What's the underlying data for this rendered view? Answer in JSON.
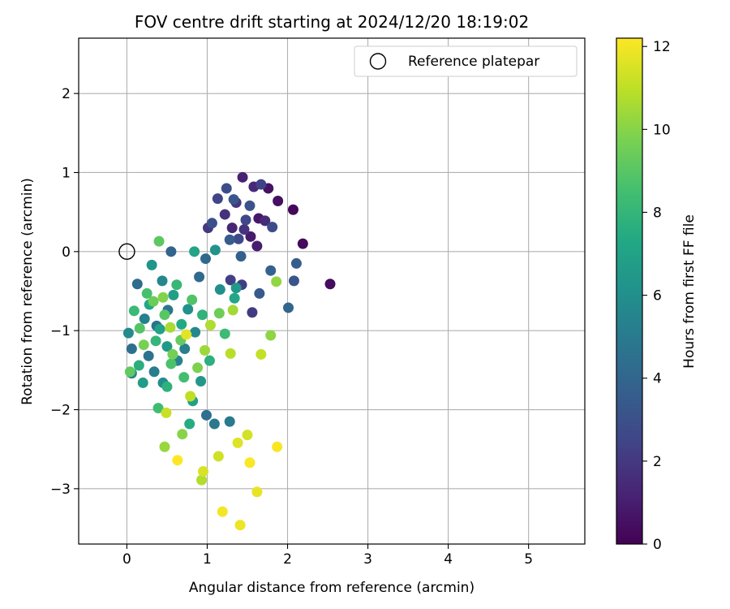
{
  "chart_data": {
    "type": "scatter",
    "title": "FOV centre drift starting at 2024/12/20 18:19:02",
    "xlabel": "Angular distance from reference (arcmin)",
    "ylabel": "Rotation from reference (arcmin)",
    "xlim": [
      -0.6,
      5.7
    ],
    "ylim": [
      -3.7,
      2.7
    ],
    "xticks": [
      0,
      1,
      2,
      3,
      4,
      5
    ],
    "yticks": [
      -3,
      -2,
      -1,
      0,
      1,
      2
    ],
    "grid": true,
    "legend": {
      "position": "top-right",
      "entries": [
        "Reference platepar"
      ]
    },
    "reference_point": {
      "x": 0,
      "y": 0
    },
    "colorbar": {
      "label": "Hours from first FF file",
      "colormap": "viridis",
      "range": [
        0,
        12.2
      ],
      "ticks": [
        0,
        2,
        4,
        6,
        8,
        10,
        12
      ]
    },
    "points": [
      {
        "x": 2.07,
        "y": 0.53,
        "c": 0.2
      },
      {
        "x": 2.19,
        "y": 0.1,
        "c": 0.3
      },
      {
        "x": 2.53,
        "y": -0.41,
        "c": 0.4
      },
      {
        "x": 1.88,
        "y": 0.64,
        "c": 0.5
      },
      {
        "x": 1.76,
        "y": 0.8,
        "c": 0.6
      },
      {
        "x": 1.64,
        "y": 0.42,
        "c": 0.8
      },
      {
        "x": 1.54,
        "y": 0.19,
        "c": 0.9
      },
      {
        "x": 1.62,
        "y": 0.07,
        "c": 1.0
      },
      {
        "x": 1.44,
        "y": 0.94,
        "c": 1.1
      },
      {
        "x": 1.31,
        "y": 0.3,
        "c": 1.3
      },
      {
        "x": 1.58,
        "y": 0.82,
        "c": 1.4
      },
      {
        "x": 1.72,
        "y": 0.39,
        "c": 1.5
      },
      {
        "x": 1.22,
        "y": 0.47,
        "c": 1.7
      },
      {
        "x": 1.46,
        "y": 0.28,
        "c": 1.8
      },
      {
        "x": 1.36,
        "y": 0.62,
        "c": 1.9
      },
      {
        "x": 1.01,
        "y": 0.3,
        "c": 2.0
      },
      {
        "x": 1.56,
        "y": -0.77,
        "c": 2.1
      },
      {
        "x": 1.43,
        "y": -0.42,
        "c": 2.2
      },
      {
        "x": 1.29,
        "y": -0.36,
        "c": 2.3
      },
      {
        "x": 1.67,
        "y": 0.85,
        "c": 2.4
      },
      {
        "x": 1.13,
        "y": 0.67,
        "c": 2.5
      },
      {
        "x": 1.48,
        "y": 0.4,
        "c": 2.6
      },
      {
        "x": 1.39,
        "y": 0.16,
        "c": 2.7
      },
      {
        "x": 1.81,
        "y": 0.31,
        "c": 2.8
      },
      {
        "x": 1.24,
        "y": 0.8,
        "c": 2.9
      },
      {
        "x": 1.06,
        "y": 0.36,
        "c": 3.0
      },
      {
        "x": 1.53,
        "y": 0.58,
        "c": 3.1
      },
      {
        "x": 2.08,
        "y": -0.37,
        "c": 3.2
      },
      {
        "x": 1.33,
        "y": 0.66,
        "c": 3.3
      },
      {
        "x": 1.65,
        "y": -0.53,
        "c": 3.4
      },
      {
        "x": 1.28,
        "y": 0.15,
        "c": 3.5
      },
      {
        "x": 2.11,
        "y": -0.15,
        "c": 3.6
      },
      {
        "x": 1.42,
        "y": -0.06,
        "c": 3.7
      },
      {
        "x": 1.79,
        "y": -0.24,
        "c": 3.8
      },
      {
        "x": 0.55,
        "y": 0.0,
        "c": 3.9
      },
      {
        "x": 2.01,
        "y": -0.71,
        "c": 4.0
      },
      {
        "x": 0.98,
        "y": -0.09,
        "c": 4.1
      },
      {
        "x": 0.9,
        "y": -0.32,
        "c": 4.2
      },
      {
        "x": 0.13,
        "y": -0.41,
        "c": 4.3
      },
      {
        "x": 0.99,
        "y": -2.07,
        "c": 4.4
      },
      {
        "x": 0.06,
        "y": -1.23,
        "c": 4.5
      },
      {
        "x": 0.37,
        "y": -0.94,
        "c": 4.6
      },
      {
        "x": 0.27,
        "y": -1.32,
        "c": 4.7
      },
      {
        "x": 0.51,
        "y": -0.74,
        "c": 4.8
      },
      {
        "x": 1.09,
        "y": -2.18,
        "c": 4.9
      },
      {
        "x": 1.28,
        "y": -2.15,
        "c": 5.0
      },
      {
        "x": 0.34,
        "y": -1.52,
        "c": 5.1
      },
      {
        "x": 0.72,
        "y": -1.23,
        "c": 5.2
      },
      {
        "x": 0.22,
        "y": -0.85,
        "c": 5.3
      },
      {
        "x": 0.63,
        "y": -1.38,
        "c": 5.4
      },
      {
        "x": 0.06,
        "y": -1.54,
        "c": 5.5
      },
      {
        "x": 0.44,
        "y": -0.37,
        "c": 5.6
      },
      {
        "x": 0.85,
        "y": -1.02,
        "c": 5.7
      },
      {
        "x": 0.02,
        "y": -1.03,
        "c": 5.8
      },
      {
        "x": 0.45,
        "y": -1.66,
        "c": 5.9
      },
      {
        "x": 1.16,
        "y": -0.48,
        "c": 6.0
      },
      {
        "x": 0.76,
        "y": -0.73,
        "c": 6.1
      },
      {
        "x": 1.1,
        "y": 0.02,
        "c": 6.2
      },
      {
        "x": 0.31,
        "y": -0.17,
        "c": 6.3
      },
      {
        "x": 0.92,
        "y": -1.64,
        "c": 6.4
      },
      {
        "x": 0.5,
        "y": -1.2,
        "c": 6.5
      },
      {
        "x": 1.36,
        "y": -0.46,
        "c": 6.6
      },
      {
        "x": 0.2,
        "y": -1.66,
        "c": 6.7
      },
      {
        "x": 0.58,
        "y": -0.55,
        "c": 6.8
      },
      {
        "x": 0.82,
        "y": -1.89,
        "c": 6.9
      },
      {
        "x": 0.41,
        "y": -0.98,
        "c": 7.0
      },
      {
        "x": 0.84,
        "y": 0.0,
        "c": 7.1
      },
      {
        "x": 1.34,
        "y": -0.59,
        "c": 7.2
      },
      {
        "x": 0.28,
        "y": -0.67,
        "c": 7.3
      },
      {
        "x": 0.68,
        "y": -0.92,
        "c": 7.4
      },
      {
        "x": 0.78,
        "y": -2.18,
        "c": 7.5
      },
      {
        "x": 0.15,
        "y": -1.44,
        "c": 7.6
      },
      {
        "x": 1.03,
        "y": -1.38,
        "c": 7.7
      },
      {
        "x": 0.5,
        "y": -1.71,
        "c": 7.8
      },
      {
        "x": 0.94,
        "y": -0.8,
        "c": 7.9
      },
      {
        "x": 0.36,
        "y": -1.13,
        "c": 8.0
      },
      {
        "x": 0.62,
        "y": -0.42,
        "c": 8.1
      },
      {
        "x": 0.09,
        "y": -0.75,
        "c": 8.2
      },
      {
        "x": 1.22,
        "y": -1.04,
        "c": 8.3
      },
      {
        "x": 0.39,
        "y": -1.98,
        "c": 8.4
      },
      {
        "x": 0.71,
        "y": -1.59,
        "c": 8.5
      },
      {
        "x": 0.25,
        "y": -0.53,
        "c": 8.6
      },
      {
        "x": 0.55,
        "y": -1.42,
        "c": 8.7
      },
      {
        "x": 0.81,
        "y": -0.61,
        "c": 8.8
      },
      {
        "x": 0.16,
        "y": -0.97,
        "c": 8.9
      },
      {
        "x": 0.47,
        "y": -0.8,
        "c": 9.0
      },
      {
        "x": 0.4,
        "y": 0.13,
        "c": 9.1
      },
      {
        "x": 0.04,
        "y": -1.52,
        "c": 9.2
      },
      {
        "x": 0.67,
        "y": -1.12,
        "c": 9.3
      },
      {
        "x": 0.33,
        "y": -0.63,
        "c": 9.4
      },
      {
        "x": 1.15,
        "y": -0.78,
        "c": 9.5
      },
      {
        "x": 0.57,
        "y": -1.3,
        "c": 9.6
      },
      {
        "x": 0.21,
        "y": -1.18,
        "c": 9.7
      },
      {
        "x": 0.88,
        "y": -1.47,
        "c": 9.8
      },
      {
        "x": 0.45,
        "y": -0.58,
        "c": 9.9
      },
      {
        "x": 0.69,
        "y": -2.31,
        "c": 10.0
      },
      {
        "x": 1.79,
        "y": -1.06,
        "c": 10.1
      },
      {
        "x": 1.86,
        "y": -0.38,
        "c": 10.2
      },
      {
        "x": 0.47,
        "y": -2.47,
        "c": 10.3
      },
      {
        "x": 0.97,
        "y": -1.25,
        "c": 10.4
      },
      {
        "x": 1.32,
        "y": -0.74,
        "c": 10.5
      },
      {
        "x": 0.54,
        "y": -0.96,
        "c": 10.6
      },
      {
        "x": 1.04,
        "y": -0.93,
        "c": 10.7
      },
      {
        "x": 0.93,
        "y": -2.89,
        "c": 10.8
      },
      {
        "x": 1.29,
        "y": -1.29,
        "c": 10.9
      },
      {
        "x": 0.79,
        "y": -1.83,
        "c": 11.0
      },
      {
        "x": 1.67,
        "y": -1.3,
        "c": 11.1
      },
      {
        "x": 0.49,
        "y": -2.04,
        "c": 11.2
      },
      {
        "x": 1.14,
        "y": -2.59,
        "c": 11.3
      },
      {
        "x": 1.5,
        "y": -2.32,
        "c": 11.4
      },
      {
        "x": 0.95,
        "y": -2.78,
        "c": 11.5
      },
      {
        "x": 1.38,
        "y": -2.42,
        "c": 11.6
      },
      {
        "x": 0.74,
        "y": -1.05,
        "c": 11.7
      },
      {
        "x": 1.62,
        "y": -3.04,
        "c": 11.8
      },
      {
        "x": 1.41,
        "y": -3.46,
        "c": 11.9
      },
      {
        "x": 1.19,
        "y": -3.29,
        "c": 12.0
      },
      {
        "x": 1.87,
        "y": -2.47,
        "c": 12.1
      },
      {
        "x": 0.63,
        "y": -2.64,
        "c": 12.2
      },
      {
        "x": 1.53,
        "y": -2.67,
        "c": 12.15
      }
    ]
  }
}
